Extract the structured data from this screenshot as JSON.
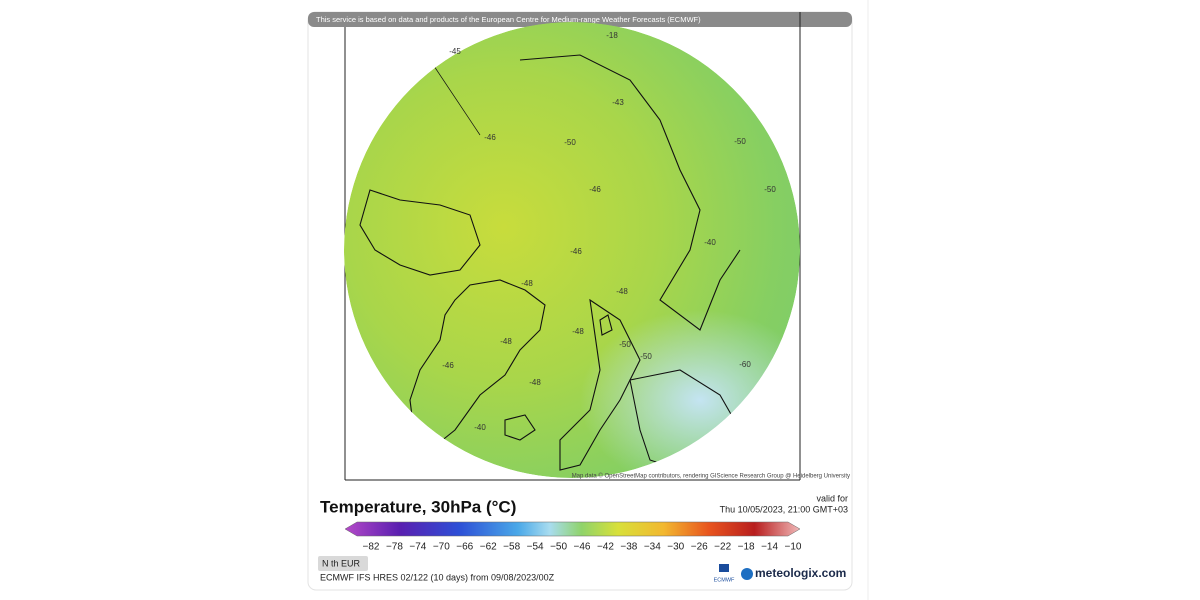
{
  "header": {
    "attribution": "This service is based on data and products of the European Centre for Medium-range Weather Forecasts (ECMWF)"
  },
  "map": {
    "contour_labels": [
      "-18",
      "-45",
      "-43",
      "-46",
      "-50",
      "-50",
      "-46",
      "-40",
      "-46",
      "-48",
      "-48",
      "-48",
      "-50",
      "-50",
      "-60",
      "-50",
      "-48",
      "-46",
      "-48",
      "-40"
    ],
    "attribution": "Map data © OpenStreetMap contributors, rendering GIScience Research Group @ Heidelberg University"
  },
  "legend": {
    "title": "Temperature, 30hPa (°C)",
    "valid_for": "valid for",
    "valid_time": "Thu 10/05/2023, 21:00 GMT+03",
    "ticks": [
      "−82",
      "−78",
      "−74",
      "−70",
      "−66",
      "−62",
      "−58",
      "−54",
      "−50",
      "−46",
      "−42",
      "−38",
      "−34",
      "−30",
      "−26",
      "−22",
      "−18",
      "−14",
      "−10"
    ]
  },
  "footer": {
    "region": "N th EUR",
    "model": "ECMWF IFS HRES 02/122 (10 days) from 09/08/2023/00Z",
    "ecmwf_logo": "ECMWF",
    "brand": "meteologix.com"
  }
}
